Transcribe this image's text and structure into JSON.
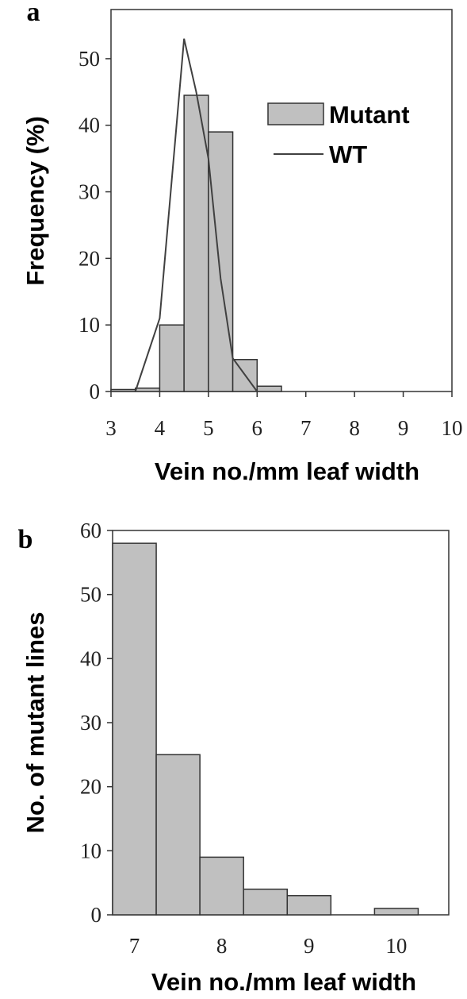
{
  "chart_data": [
    {
      "panel": "a",
      "type": "bar",
      "xlabel": "Vein no./mm leaf width",
      "ylabel": "Frequency (%)",
      "xlim": [
        3,
        10
      ],
      "ylim": [
        0,
        55
      ],
      "xticks": [
        3,
        4,
        5,
        6,
        7,
        8,
        9,
        10
      ],
      "yticks": [
        0,
        10,
        20,
        30,
        40,
        50
      ],
      "grid": false,
      "legend_position": "top-right",
      "series": [
        {
          "name": "Mutant",
          "type": "bar",
          "bin_width": 0.5,
          "bin_centers": [
            3.25,
            3.75,
            4.25,
            4.75,
            5.25,
            5.75,
            6.25
          ],
          "values": [
            0.3,
            0.5,
            10,
            44.5,
            39,
            4.8,
            0.8
          ],
          "color": "#c0c0c0"
        },
        {
          "name": "WT",
          "type": "line",
          "x": [
            3.5,
            4.0,
            4.25,
            4.5,
            4.75,
            5.0,
            5.25,
            5.5,
            6.0
          ],
          "y": [
            0,
            11,
            32,
            53,
            45,
            35,
            17,
            5,
            0
          ],
          "color": "#404040"
        }
      ]
    },
    {
      "panel": "b",
      "type": "bar",
      "xlabel": "Vein no./mm leaf width",
      "ylabel": "No. of mutant lines",
      "ylim": [
        0,
        60
      ],
      "yticks": [
        0,
        10,
        20,
        30,
        40,
        50,
        60
      ],
      "xtick_labels": [
        "7",
        "8",
        "9",
        "10"
      ],
      "grid": false,
      "series": [
        {
          "type": "bar",
          "bin_width": 0.5,
          "bin_centers": [
            7.0,
            7.5,
            8.0,
            8.5,
            9.0,
            9.5,
            10.0
          ],
          "values": [
            58,
            25,
            9,
            4,
            3,
            0,
            1
          ],
          "color": "#c0c0c0"
        }
      ]
    }
  ]
}
